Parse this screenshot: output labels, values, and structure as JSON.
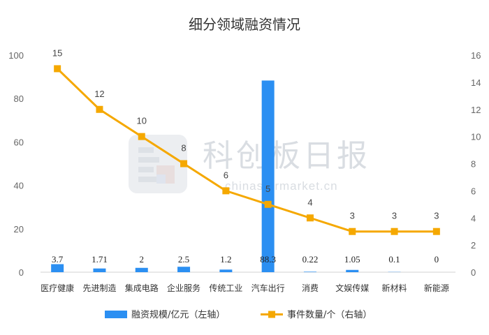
{
  "chart_data": {
    "type": "bar+line",
    "title": "细分领域融资情况",
    "categories": [
      "医疗健康",
      "先进制造",
      "集成电路",
      "企业服务",
      "传统工业",
      "汽车出行",
      "消费",
      "文娱传媒",
      "新材料",
      "新能源"
    ],
    "series": [
      {
        "name": "融资规模/亿元（左轴）",
        "type": "bar",
        "axis": "left",
        "color": "#2b8ff2",
        "values": [
          3.7,
          1.71,
          2,
          2.5,
          1.2,
          88.3,
          0.22,
          1.05,
          0.1,
          0
        ],
        "labels": [
          "3.7",
          "1.71",
          "2",
          "2.5",
          "1.2",
          "88.3",
          "0.22",
          "1.05",
          "0.1",
          "0"
        ]
      },
      {
        "name": "事件数量/个（右轴）",
        "type": "line",
        "axis": "right",
        "color": "#f5a800",
        "values": [
          15,
          12,
          10,
          8,
          6,
          5,
          4,
          3,
          3,
          3
        ],
        "labels": [
          "15",
          "12",
          "10",
          "8",
          "6",
          "5",
          "4",
          "3",
          "3",
          "3"
        ]
      }
    ],
    "y_left": {
      "range": [
        0,
        100
      ],
      "ticks": [
        "0",
        "20",
        "40",
        "60",
        "80",
        "100"
      ]
    },
    "y_right": {
      "range": [
        0,
        16
      ],
      "ticks": [
        "0",
        "2",
        "4",
        "6",
        "8",
        "10",
        "12",
        "14",
        "16"
      ]
    },
    "grid": false,
    "legend_position": "bottom"
  },
  "watermark": {
    "text": "科创板日报",
    "url": "chinastarmarket.cn"
  }
}
